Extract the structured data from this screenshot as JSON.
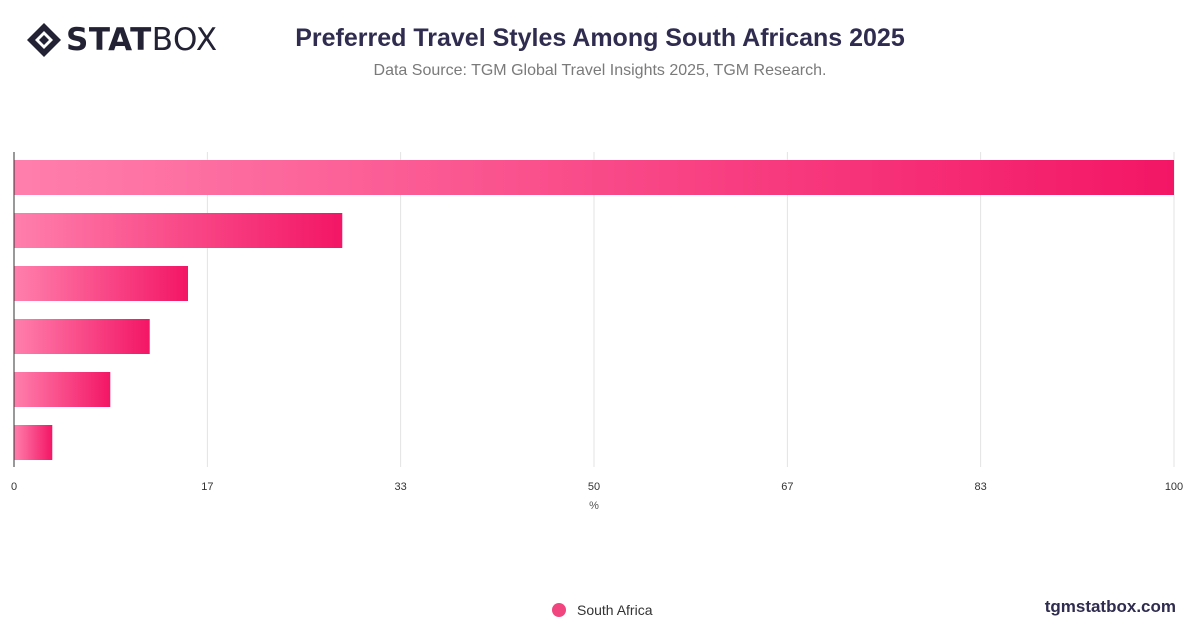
{
  "brand": {
    "logo_prefix": "STAT",
    "logo_suffix": "BOX",
    "logo_icon": "statbox-diamond-icon",
    "website": "tgmstatbox.com"
  },
  "header": {
    "title": "Preferred Travel Styles Among South Africans 2025",
    "subtitle": "Data Source: TGM Global Travel Insights 2025, TGM Research."
  },
  "colors": {
    "bar_start": "#ff7fac",
    "bar_end": "#f31665",
    "legend": "#f0457f",
    "grid": "#e3e3e3",
    "axis": "#333333",
    "title": "#2f2c4f"
  },
  "chart_data": {
    "type": "bar",
    "orientation": "horizontal",
    "categories": [
      "",
      "",
      "",
      "",
      "",
      ""
    ],
    "series": [
      {
        "name": "South Africa",
        "values": [
          100,
          28.3,
          15,
          11.7,
          8.3,
          3.3
        ]
      }
    ],
    "xlabel": "%",
    "xlim": [
      0,
      100
    ],
    "xticks": [
      "0",
      "17",
      "33",
      "50",
      "67",
      "83",
      "100"
    ],
    "tick_values": [
      0,
      16.67,
      33.33,
      50,
      66.67,
      83.33,
      100
    ],
    "grid": true,
    "legend_position": "bottom-center"
  }
}
